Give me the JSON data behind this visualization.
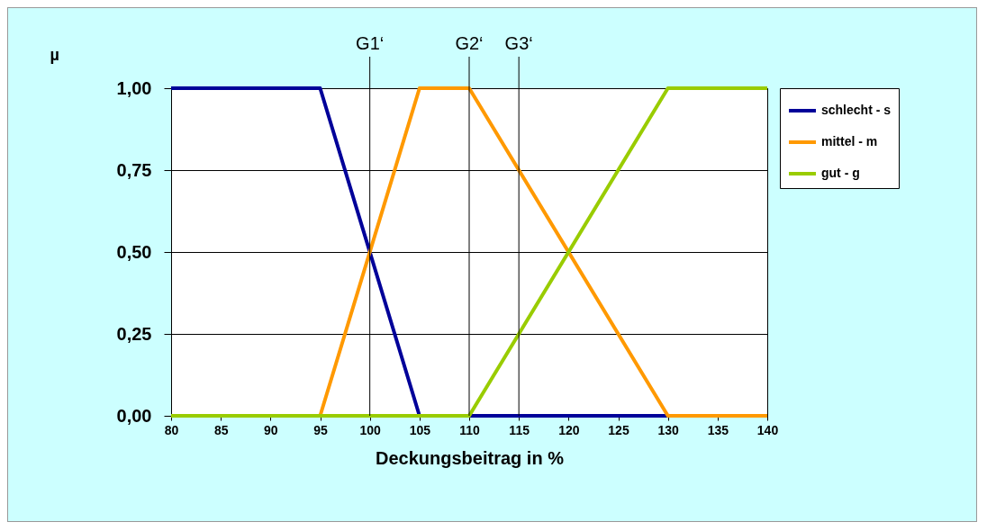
{
  "chart_data": {
    "type": "line",
    "xlabel": "Deckungsbeitrag in %",
    "ylabel": "µ",
    "xlim": [
      80,
      140
    ],
    "xticks": [
      80,
      85,
      90,
      95,
      100,
      105,
      110,
      115,
      120,
      125,
      130,
      135,
      140
    ],
    "ylim": [
      0,
      1
    ],
    "yticks": [
      {
        "value": 0,
        "label": "0,00"
      },
      {
        "value": 0.25,
        "label": "0,25"
      },
      {
        "value": 0.5,
        "label": "0,50"
      },
      {
        "value": 0.75,
        "label": "0,75"
      },
      {
        "value": 1,
        "label": "1,00"
      }
    ],
    "grid": "y",
    "legend": "right",
    "marker": "none",
    "line_style": "solid",
    "series": [
      {
        "name": "schlecht - s",
        "color": "#000099",
        "x": [
          80,
          95,
          105,
          140
        ],
        "values": [
          1,
          1,
          0,
          0
        ]
      },
      {
        "name": "mittel - m",
        "color": "#ff9900",
        "x": [
          80,
          95,
          105,
          110,
          130,
          140
        ],
        "values": [
          0,
          0,
          1,
          1,
          0,
          0
        ]
      },
      {
        "name": "gut - g",
        "color": "#99cc00",
        "x": [
          80,
          110,
          130,
          140
        ],
        "values": [
          0,
          0,
          1,
          1
        ]
      }
    ],
    "ref_lines": [
      {
        "axis": "x",
        "value": 100,
        "label": "G1‘",
        "color": "#000000"
      },
      {
        "axis": "x",
        "value": 110,
        "label": "G2‘",
        "color": "#000000"
      },
      {
        "axis": "x",
        "value": 115,
        "label": "G3‘",
        "color": "#000000"
      }
    ]
  }
}
